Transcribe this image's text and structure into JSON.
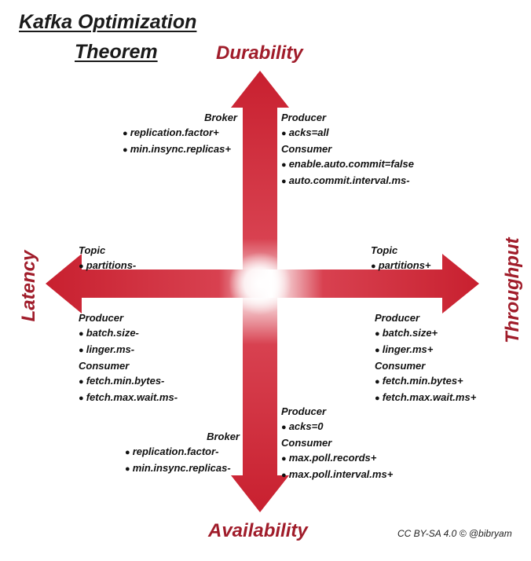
{
  "title": {
    "line1": "Kafka Optimization",
    "line2": "Theorem"
  },
  "axes": {
    "top": "Durability",
    "bottom": "Availability",
    "left": "Latency",
    "right": "Throughput"
  },
  "colors": {
    "arrow": "#d0303f",
    "arrow_dark": "#b81f2e",
    "label": "#a01c2a"
  },
  "quadrants": {
    "top_left": {
      "sections": [
        {
          "header": "Broker",
          "items": [
            "replication.factor+",
            "min.insync.replicas+"
          ]
        }
      ]
    },
    "top_right": {
      "sections": [
        {
          "header": "Producer",
          "items": [
            "acks=all"
          ]
        },
        {
          "header": "Consumer",
          "items": [
            "enable.auto.commit=false",
            "auto.commit.interval.ms-"
          ]
        }
      ]
    },
    "left_upper": {
      "sections": [
        {
          "header": "Topic",
          "items": [
            "partitions-"
          ]
        }
      ]
    },
    "right_upper": {
      "sections": [
        {
          "header": "Topic",
          "items": [
            "partitions+"
          ]
        }
      ]
    },
    "left_lower": {
      "sections": [
        {
          "header": "Producer",
          "items": [
            "batch.size-",
            "linger.ms-"
          ]
        },
        {
          "header": "Consumer",
          "items": [
            "fetch.min.bytes-",
            "fetch.max.wait.ms-"
          ]
        }
      ]
    },
    "right_lower": {
      "sections": [
        {
          "header": "Producer",
          "items": [
            "batch.size+",
            "linger.ms+"
          ]
        },
        {
          "header": "Consumer",
          "items": [
            "fetch.min.bytes+",
            "fetch.max.wait.ms+"
          ]
        }
      ]
    },
    "bottom_left": {
      "sections": [
        {
          "header": "Broker",
          "items": [
            "replication.factor-",
            "min.insync.replicas-"
          ]
        }
      ]
    },
    "bottom_right": {
      "sections": [
        {
          "header": "Producer",
          "items": [
            "acks=0"
          ]
        },
        {
          "header": "Consumer",
          "items": [
            "max.poll.records+",
            "max.poll.interval.ms+"
          ]
        }
      ]
    }
  },
  "credit": "CC BY-SA 4.0 © @bibryam"
}
